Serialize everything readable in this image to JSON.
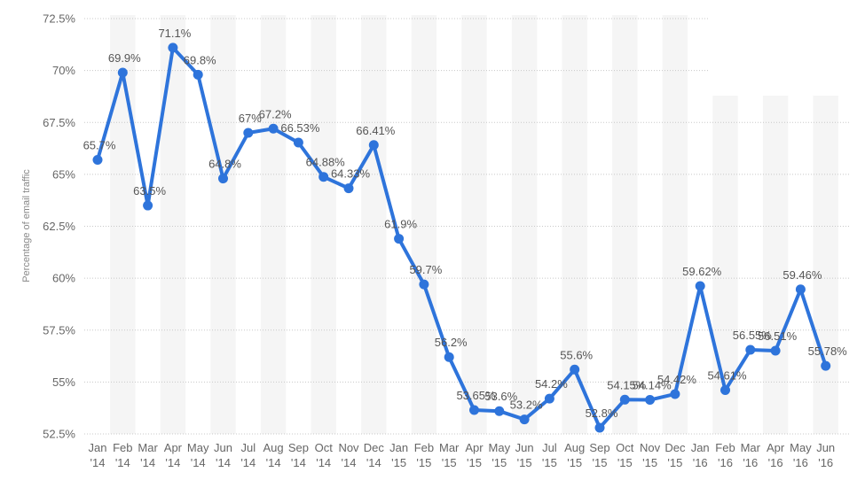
{
  "chart_data": {
    "type": "line",
    "ylabel": "Percentage of email traffic",
    "ylim": [
      52.5,
      72.5
    ],
    "yticks": [
      "52.5%",
      "55%",
      "57.5%",
      "60%",
      "62.5%",
      "65%",
      "67.5%",
      "70%",
      "72.5%"
    ],
    "ytick_values": [
      52.5,
      55,
      57.5,
      60,
      62.5,
      65,
      67.5,
      70,
      72.5
    ],
    "categories": [
      [
        "Jan",
        "'14"
      ],
      [
        "Feb",
        "'14"
      ],
      [
        "Mar",
        "'14"
      ],
      [
        "Apr",
        "'14"
      ],
      [
        "May",
        "'14"
      ],
      [
        "Jun",
        "'14"
      ],
      [
        "Jul",
        "'14"
      ],
      [
        "Aug",
        "'14"
      ],
      [
        "Sep",
        "'14"
      ],
      [
        "Oct",
        "'14"
      ],
      [
        "Nov",
        "'14"
      ],
      [
        "Dec",
        "'14"
      ],
      [
        "Jan",
        "'15"
      ],
      [
        "Feb",
        "'15"
      ],
      [
        "Mar",
        "'15"
      ],
      [
        "Apr",
        "'15"
      ],
      [
        "May",
        "'15"
      ],
      [
        "Jun",
        "'15"
      ],
      [
        "Jul",
        "'15"
      ],
      [
        "Aug",
        "'15"
      ],
      [
        "Sep",
        "'15"
      ],
      [
        "Oct",
        "'15"
      ],
      [
        "Nov",
        "'15"
      ],
      [
        "Dec",
        "'15"
      ],
      [
        "Jan",
        "'16"
      ],
      [
        "Feb",
        "'16"
      ],
      [
        "Mar",
        "'16"
      ],
      [
        "Apr",
        "'16"
      ],
      [
        "May",
        "'16"
      ],
      [
        "Jun",
        "'16"
      ]
    ],
    "series": [
      {
        "values": [
          65.7,
          69.9,
          63.5,
          71.1,
          69.8,
          64.8,
          67,
          67.2,
          66.53,
          64.88,
          64.33,
          66.41,
          61.9,
          59.7,
          56.2,
          53.65,
          53.6,
          53.2,
          54.2,
          55.6,
          52.8,
          54.15,
          54.14,
          54.42,
          59.62,
          54.61,
          56.55,
          56.51,
          59.46,
          55.78
        ],
        "labels": [
          "65.7%",
          "69.9%",
          "63.5%",
          "71.1%",
          "69.8%",
          "64.8%",
          "67%",
          "67.2%",
          "66.53%",
          "64.88%",
          "64.33%",
          "66.41%",
          "61.9%",
          "59.7%",
          "56.2%",
          "53.65%",
          "53.6%",
          "53.2%",
          "54.2%",
          "55.6%",
          "52.8%",
          "54.15%",
          "54.14%",
          "54.42%",
          "59.62%",
          "54.61%",
          "56.55%",
          "56.51%",
          "59.46%",
          "55.78%"
        ]
      }
    ],
    "colors": {
      "line": "#2e74db",
      "band": "#f5f5f5",
      "grid": "#c8c8c8"
    },
    "grid": true,
    "legend": "none"
  }
}
